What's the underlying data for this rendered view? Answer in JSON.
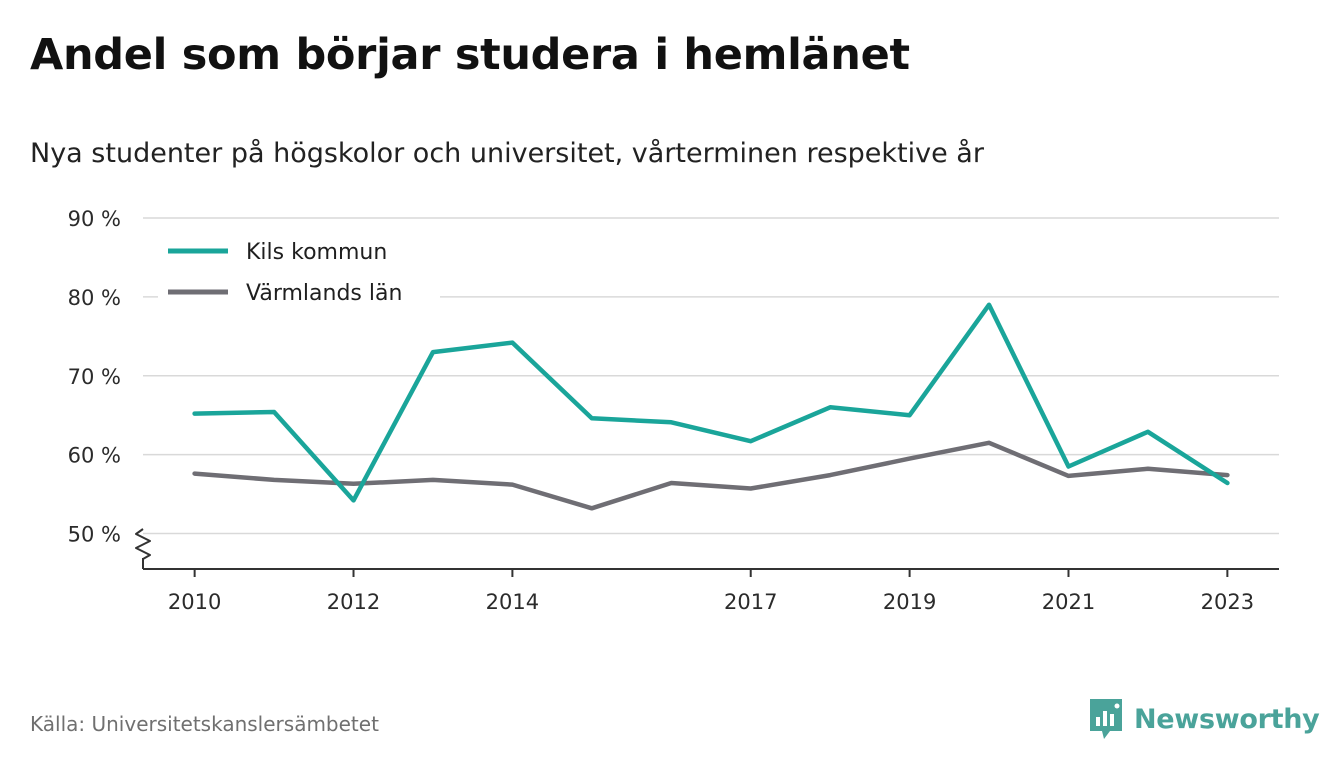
{
  "header": {
    "title": "Andel som börjar studera i hemlänet",
    "subtitle": "Nya studenter på högskolor och universitet, vårterminen respektive år"
  },
  "footer": {
    "source": "Källa: Universitetskanslersämbetet",
    "brand": "Newsworthy"
  },
  "colors": {
    "kils": "#1aa59a",
    "varmland": "#6f6e74",
    "grid": "#d9d9d9",
    "axis": "#333333",
    "brand": "#4aa39a"
  },
  "chart_data": {
    "type": "line",
    "x": [
      2010,
      2011,
      2012,
      2013,
      2014,
      2015,
      2016,
      2017,
      2018,
      2019,
      2020,
      2021,
      2022,
      2023
    ],
    "x_tick_labels": [
      "2010",
      "2012",
      "2014",
      "2017",
      "2019",
      "2021",
      "2023"
    ],
    "y_tick_labels": [
      "50 %",
      "60 %",
      "70 %",
      "80 %",
      "90 %"
    ],
    "y_ticks": [
      50,
      60,
      70,
      80,
      90
    ],
    "ylim": [
      45.5,
      90
    ],
    "xlim": [
      2009.35,
      2023.65
    ],
    "axis_break": true,
    "grid": true,
    "legend_position": "top-left",
    "series": [
      {
        "name": "Kils kommun",
        "color": "#1aa59a",
        "values": [
          65.2,
          65.4,
          54.2,
          73.0,
          74.2,
          64.6,
          64.1,
          61.7,
          66.0,
          65.0,
          79.0,
          58.5,
          62.9,
          56.4
        ]
      },
      {
        "name": "Värmlands län",
        "color": "#6f6e74",
        "values": [
          57.6,
          56.8,
          56.3,
          56.8,
          56.2,
          53.2,
          56.4,
          55.7,
          57.4,
          59.5,
          61.5,
          57.3,
          58.2,
          57.4
        ]
      }
    ]
  }
}
